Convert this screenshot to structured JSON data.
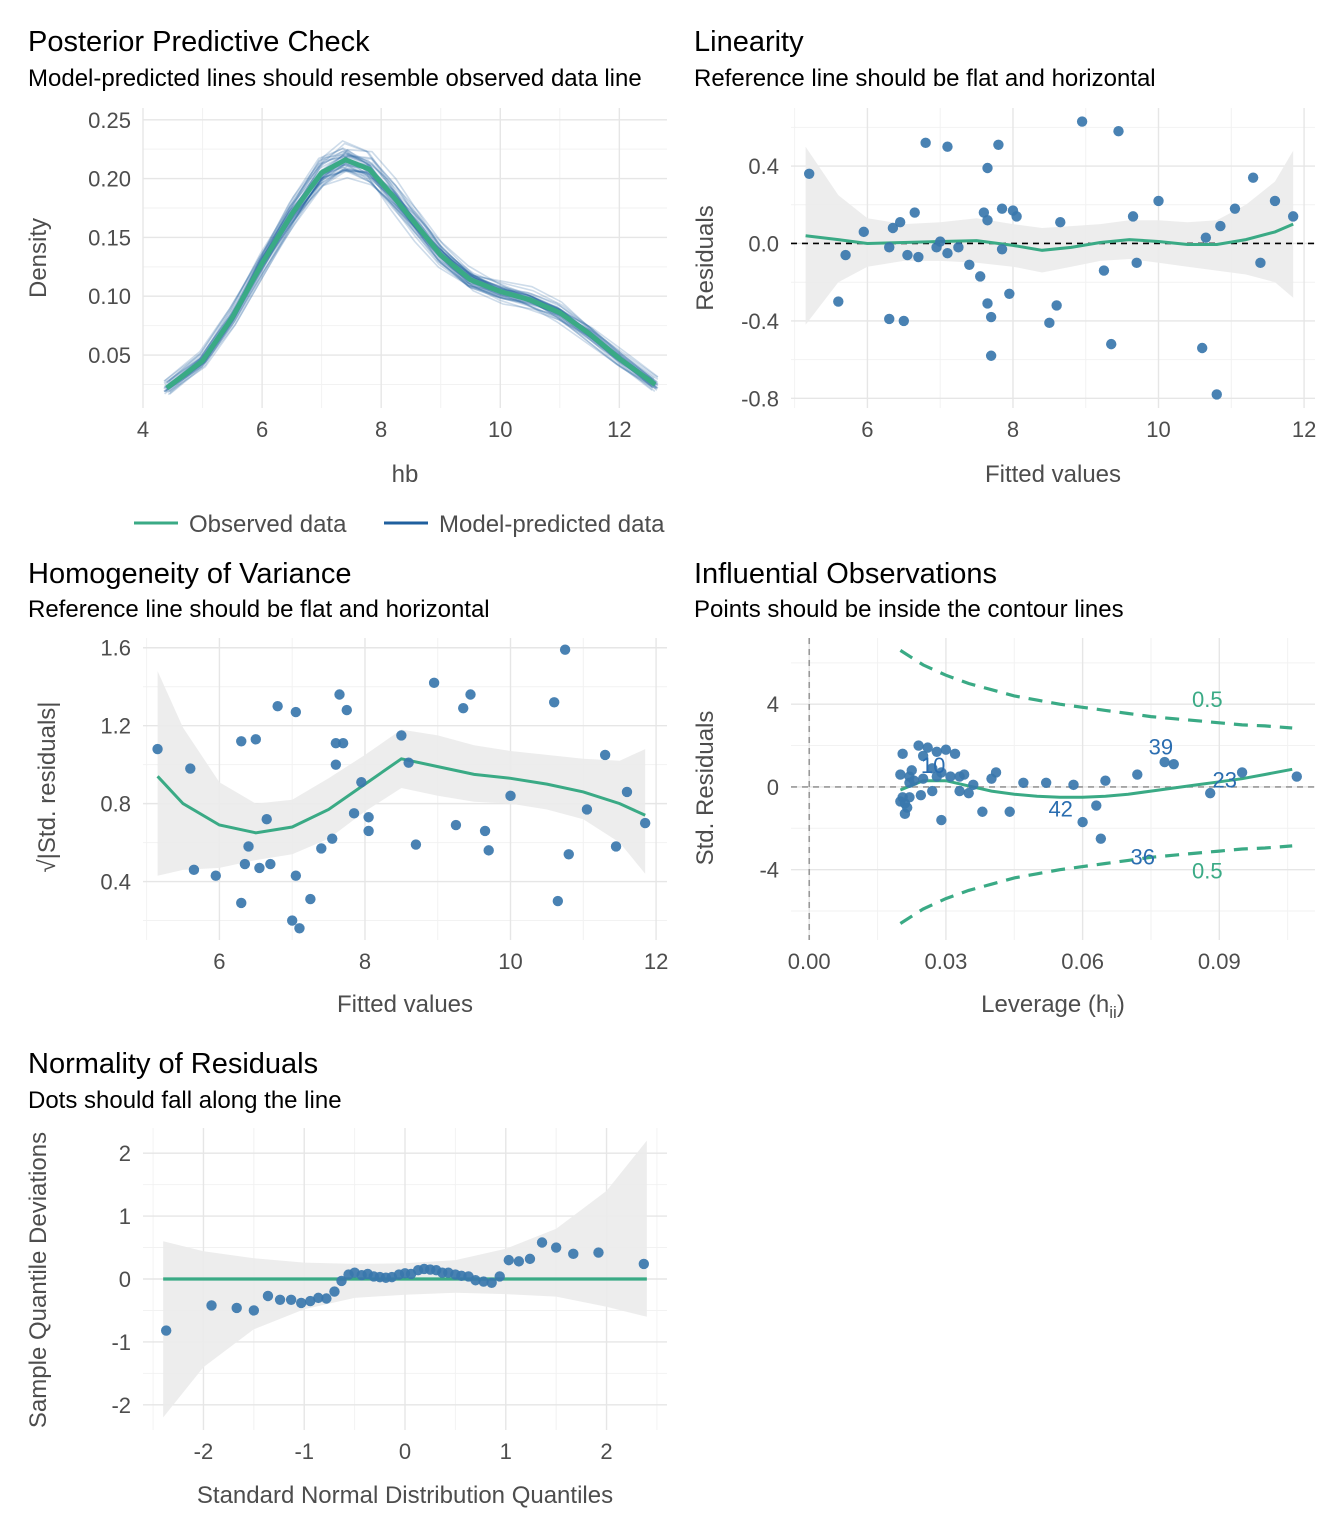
{
  "colors": {
    "observed": "#3aaa85",
    "predicted": "#1f5f9e",
    "points": "#3a77ac",
    "band": "#ebebeb",
    "grid": "#e6e6e6",
    "label_blue": "#2a6db0",
    "label_green": "#3aaa85"
  },
  "chart_data": [
    {
      "id": "ppc",
      "type": "line",
      "title": "Posterior Predictive Check",
      "subtitle": "Model-predicted lines should resemble observed data line",
      "xlabel": "hb",
      "ylabel": "Density",
      "xlim": [
        4,
        12.8
      ],
      "ylim": [
        0.005,
        0.26
      ],
      "xticks": [
        4,
        6,
        8,
        10,
        12
      ],
      "xtick_labels": [
        "4",
        "6",
        "8",
        "10",
        "12"
      ],
      "yticks": [
        0.05,
        0.1,
        0.15,
        0.2,
        0.25
      ],
      "ytick_labels": [
        "0.05",
        "0.10",
        "0.15",
        "0.20",
        "0.25"
      ],
      "legend": [
        "Observed data",
        "Model-predicted data"
      ],
      "legend_position": "bottom",
      "series": [
        {
          "name": "Observed data",
          "x": [
            4.4,
            5.0,
            5.5,
            6.0,
            6.5,
            7.0,
            7.4,
            7.8,
            8.2,
            8.6,
            9.0,
            9.5,
            10.0,
            10.5,
            11.0,
            11.5,
            12.0,
            12.6
          ],
          "y": [
            0.022,
            0.045,
            0.082,
            0.128,
            0.17,
            0.205,
            0.216,
            0.208,
            0.185,
            0.16,
            0.135,
            0.114,
            0.104,
            0.097,
            0.086,
            0.068,
            0.047,
            0.025
          ]
        }
      ]
    },
    {
      "id": "linearity",
      "type": "scatter",
      "title": "Linearity",
      "subtitle": "Reference line should be flat and horizontal",
      "xlabel": "Fitted values",
      "ylabel": "Residuals",
      "xlim": [
        4.95,
        12.15
      ],
      "ylim": [
        -0.85,
        0.7
      ],
      "xticks": [
        6,
        8,
        10,
        12
      ],
      "xtick_labels": [
        "6",
        "8",
        "10",
        "12"
      ],
      "yticks": [
        -0.8,
        -0.4,
        0.0,
        0.4
      ],
      "ytick_labels": [
        "-0.8",
        "-0.4",
        "0.0",
        "0.4"
      ],
      "points": [
        [
          5.2,
          0.36
        ],
        [
          5.6,
          -0.3
        ],
        [
          5.7,
          -0.06
        ],
        [
          5.95,
          0.06
        ],
        [
          6.3,
          -0.02
        ],
        [
          6.35,
          0.08
        ],
        [
          6.45,
          0.11
        ],
        [
          6.3,
          -0.39
        ],
        [
          6.5,
          -0.4
        ],
        [
          6.55,
          -0.06
        ],
        [
          6.65,
          0.16
        ],
        [
          6.7,
          -0.07
        ],
        [
          6.8,
          0.52
        ],
        [
          6.95,
          -0.02
        ],
        [
          7.0,
          0.01
        ],
        [
          7.1,
          0.5
        ],
        [
          7.1,
          -0.05
        ],
        [
          7.25,
          -0.02
        ],
        [
          7.4,
          -0.11
        ],
        [
          7.55,
          -0.17
        ],
        [
          7.6,
          0.16
        ],
        [
          7.65,
          0.39
        ],
        [
          7.65,
          0.12
        ],
        [
          7.7,
          -0.38
        ],
        [
          7.65,
          -0.31
        ],
        [
          7.7,
          -0.58
        ],
        [
          7.8,
          0.51
        ],
        [
          7.85,
          0.18
        ],
        [
          7.85,
          -0.03
        ],
        [
          8.0,
          0.17
        ],
        [
          7.95,
          -0.26
        ],
        [
          8.05,
          0.14
        ],
        [
          8.5,
          -0.41
        ],
        [
          8.6,
          -0.32
        ],
        [
          8.65,
          0.11
        ],
        [
          8.95,
          0.63
        ],
        [
          9.25,
          -0.14
        ],
        [
          9.35,
          -0.52
        ],
        [
          9.45,
          0.58
        ],
        [
          9.65,
          0.14
        ],
        [
          9.7,
          -0.1
        ],
        [
          10.0,
          0.22
        ],
        [
          10.65,
          0.03
        ],
        [
          10.6,
          -0.54
        ],
        [
          10.8,
          -0.78
        ],
        [
          10.85,
          0.09
        ],
        [
          11.05,
          0.18
        ],
        [
          11.3,
          0.34
        ],
        [
          11.4,
          -0.1
        ],
        [
          11.6,
          0.22
        ],
        [
          11.85,
          0.14
        ]
      ],
      "smooth": {
        "x": [
          5.15,
          5.6,
          6.0,
          6.5,
          7.0,
          7.5,
          8.0,
          8.4,
          8.8,
          9.2,
          9.6,
          10.0,
          10.4,
          10.8,
          11.2,
          11.6,
          11.85
        ],
        "y": [
          0.04,
          0.02,
          0.0,
          0.005,
          0.01,
          0.015,
          -0.01,
          -0.035,
          -0.02,
          0.005,
          0.02,
          0.01,
          -0.005,
          -0.005,
          0.02,
          0.06,
          0.1
        ],
        "lower": [
          -0.42,
          -0.2,
          -0.12,
          -0.09,
          -0.09,
          -0.1,
          -0.12,
          -0.15,
          -0.12,
          -0.09,
          -0.08,
          -0.1,
          -0.12,
          -0.14,
          -0.16,
          -0.2,
          -0.28
        ],
        "upper": [
          0.5,
          0.25,
          0.13,
          0.1,
          0.11,
          0.13,
          0.1,
          0.08,
          0.09,
          0.1,
          0.12,
          0.12,
          0.11,
          0.12,
          0.2,
          0.32,
          0.48
        ]
      },
      "ref_line": 0
    },
    {
      "id": "homogeneity",
      "type": "scatter",
      "title": "Homogeneity of Variance",
      "subtitle": "Reference line should be flat and horizontal",
      "xlabel": "Fitted values",
      "ylabel": "|Std. residuals|",
      "ylabel_prefix": "√",
      "xlim": [
        4.95,
        12.15
      ],
      "ylim": [
        0.1,
        1.65
      ],
      "xticks": [
        6,
        8,
        10,
        12
      ],
      "xtick_labels": [
        "6",
        "8",
        "10",
        "12"
      ],
      "yticks": [
        0.4,
        0.8,
        1.2,
        1.6
      ],
      "ytick_labels": [
        "0.4",
        "0.8",
        "1.2",
        "1.6"
      ],
      "points": [
        [
          5.15,
          1.08
        ],
        [
          5.6,
          0.98
        ],
        [
          5.65,
          0.46
        ],
        [
          5.95,
          0.43
        ],
        [
          6.3,
          1.12
        ],
        [
          6.35,
          0.49
        ],
        [
          6.3,
          0.29
        ],
        [
          6.4,
          0.58
        ],
        [
          6.5,
          1.13
        ],
        [
          6.55,
          0.47
        ],
        [
          6.65,
          0.72
        ],
        [
          6.7,
          0.49
        ],
        [
          6.8,
          1.3
        ],
        [
          7.0,
          0.2
        ],
        [
          7.05,
          0.43
        ],
        [
          7.1,
          0.16
        ],
        [
          7.05,
          1.27
        ],
        [
          7.25,
          0.31
        ],
        [
          7.4,
          0.57
        ],
        [
          7.55,
          0.62
        ],
        [
          7.6,
          1.0
        ],
        [
          7.6,
          1.11
        ],
        [
          7.65,
          1.36
        ],
        [
          7.7,
          1.11
        ],
        [
          7.75,
          1.28
        ],
        [
          7.85,
          0.75
        ],
        [
          7.95,
          0.91
        ],
        [
          8.05,
          0.73
        ],
        [
          8.05,
          0.66
        ],
        [
          8.5,
          1.15
        ],
        [
          8.6,
          1.01
        ],
        [
          8.7,
          0.59
        ],
        [
          8.95,
          1.42
        ],
        [
          9.25,
          0.69
        ],
        [
          9.35,
          1.29
        ],
        [
          9.45,
          1.36
        ],
        [
          9.65,
          0.66
        ],
        [
          9.7,
          0.56
        ],
        [
          10.0,
          0.84
        ],
        [
          10.6,
          1.32
        ],
        [
          10.65,
          0.3
        ],
        [
          10.75,
          1.59
        ],
        [
          10.8,
          0.54
        ],
        [
          11.05,
          0.77
        ],
        [
          11.3,
          1.05
        ],
        [
          11.45,
          0.58
        ],
        [
          11.6,
          0.86
        ],
        [
          11.85,
          0.7
        ]
      ],
      "smooth": {
        "x": [
          5.15,
          5.5,
          6.0,
          6.5,
          7.0,
          7.5,
          8.0,
          8.5,
          9.0,
          9.5,
          10.0,
          10.5,
          11.0,
          11.5,
          11.85
        ],
        "y": [
          0.94,
          0.8,
          0.69,
          0.65,
          0.68,
          0.77,
          0.9,
          1.03,
          0.99,
          0.95,
          0.93,
          0.9,
          0.86,
          0.8,
          0.74
        ],
        "lower": [
          0.43,
          0.46,
          0.47,
          0.51,
          0.54,
          0.62,
          0.76,
          0.88,
          0.84,
          0.81,
          0.8,
          0.77,
          0.72,
          0.6,
          0.44
        ],
        "upper": [
          1.48,
          1.19,
          0.91,
          0.8,
          0.82,
          0.93,
          1.05,
          1.18,
          1.15,
          1.1,
          1.07,
          1.05,
          1.03,
          1.02,
          1.08
        ]
      }
    },
    {
      "id": "influential",
      "type": "scatter",
      "title": "Influential Observations",
      "subtitle": "Points should be inside the contour lines",
      "xlabel": "Leverage (h",
      "xlabel_sub": "ii",
      "xlabel_end": ")",
      "ylabel": "Std. Residuals",
      "xlim": [
        -0.004,
        0.111
      ],
      "ylim": [
        -7.4,
        7.2
      ],
      "xticks": [
        0.0,
        0.03,
        0.06,
        0.09
      ],
      "xtick_labels": [
        "0.00",
        "0.03",
        "0.06",
        "0.09"
      ],
      "yticks": [
        -4,
        0,
        4
      ],
      "ytick_labels": [
        "-4",
        "0",
        "4"
      ],
      "points": [
        [
          0.02,
          0.6
        ],
        [
          0.0205,
          1.6
        ],
        [
          0.021,
          -0.8
        ],
        [
          0.0215,
          -1.0
        ],
        [
          0.021,
          -1.3
        ],
        [
          0.022,
          0.5
        ],
        [
          0.022,
          -0.5
        ],
        [
          0.0225,
          0.8
        ],
        [
          0.023,
          0.3
        ],
        [
          0.024,
          2.0
        ],
        [
          0.0245,
          -0.4
        ],
        [
          0.025,
          1.5
        ],
        [
          0.026,
          1.9
        ],
        [
          0.027,
          -0.2
        ],
        [
          0.028,
          0.5
        ],
        [
          0.028,
          1.7
        ],
        [
          0.029,
          -1.6
        ],
        [
          0.03,
          1.8
        ],
        [
          0.031,
          0.5
        ],
        [
          0.032,
          1.6
        ],
        [
          0.033,
          -0.2
        ],
        [
          0.034,
          0.6
        ],
        [
          0.035,
          -0.3
        ],
        [
          0.038,
          -1.2
        ],
        [
          0.04,
          0.4
        ],
        [
          0.041,
          0.7
        ],
        [
          0.044,
          -1.2
        ],
        [
          0.047,
          0.2
        ],
        [
          0.052,
          0.2
        ],
        [
          0.058,
          0.1
        ],
        [
          0.063,
          -0.9
        ],
        [
          0.064,
          -2.5
        ],
        [
          0.065,
          0.3
        ],
        [
          0.072,
          0.6
        ],
        [
          0.078,
          1.2
        ],
        [
          0.08,
          1.1
        ],
        [
          0.088,
          -0.3
        ],
        [
          0.095,
          0.7
        ],
        [
          0.107,
          0.5
        ],
        [
          0.0205,
          -0.5
        ],
        [
          0.022,
          0.2
        ],
        [
          0.02,
          -0.7
        ],
        [
          0.025,
          0.4
        ],
        [
          0.027,
          0.9
        ],
        [
          0.029,
          0.7
        ],
        [
          0.033,
          0.5
        ],
        [
          0.036,
          0.1
        ],
        [
          0.06,
          -1.7
        ]
      ],
      "smooth": {
        "x": [
          0.02,
          0.025,
          0.03,
          0.035,
          0.04,
          0.045,
          0.05,
          0.055,
          0.06,
          0.065,
          0.07,
          0.075,
          0.08,
          0.085,
          0.09,
          0.095,
          0.1,
          0.106
        ],
        "y": [
          -0.15,
          0.3,
          0.3,
          0.05,
          -0.2,
          -0.35,
          -0.45,
          -0.5,
          -0.5,
          -0.45,
          -0.35,
          -0.2,
          -0.05,
          0.1,
          0.25,
          0.4,
          0.6,
          0.85
        ]
      },
      "contour_upper_x": [
        0.02,
        0.025,
        0.03,
        0.035,
        0.04,
        0.045,
        0.05,
        0.055,
        0.06,
        0.065,
        0.07,
        0.075,
        0.08,
        0.085,
        0.09,
        0.095,
        0.1,
        0.106
      ],
      "contour_upper_y": [
        6.6,
        5.9,
        5.4,
        5.0,
        4.7,
        4.4,
        4.2,
        4.0,
        3.85,
        3.7,
        3.55,
        3.4,
        3.3,
        3.2,
        3.1,
        3.0,
        2.95,
        2.85
      ],
      "contour_lower_y": [
        -6.6,
        -5.9,
        -5.4,
        -5.0,
        -4.7,
        -4.4,
        -4.2,
        -4.0,
        -3.85,
        -3.7,
        -3.55,
        -3.4,
        -3.3,
        -3.2,
        -3.1,
        -3.0,
        -2.95,
        -2.85
      ],
      "contour_labels": [
        {
          "text": "0.5",
          "x": 0.084,
          "y": 4.2
        },
        {
          "text": "0.5",
          "x": 0.084,
          "y": -4.1
        }
      ],
      "point_labels": [
        {
          "text": "10",
          "x": 0.0245,
          "y": 1.0
        },
        {
          "text": "39",
          "x": 0.0745,
          "y": 1.9
        },
        {
          "text": "23",
          "x": 0.0885,
          "y": 0.3
        },
        {
          "text": "42",
          "x": 0.0525,
          "y": -1.1
        },
        {
          "text": "36",
          "x": 0.0705,
          "y": -3.4
        }
      ]
    },
    {
      "id": "qq",
      "type": "scatter",
      "title": "Normality of Residuals",
      "subtitle": "Dots should fall along the line",
      "xlabel": "Standard Normal Distribution Quantiles",
      "ylabel": "Sample Quantile Deviations",
      "xlim": [
        -2.6,
        2.6
      ],
      "ylim": [
        -2.4,
        2.4
      ],
      "xticks": [
        -2,
        -1,
        0,
        1,
        2
      ],
      "xtick_labels": [
        "-2",
        "-1",
        "0",
        "1",
        "2"
      ],
      "yticks": [
        -2,
        -1,
        0,
        1,
        2
      ],
      "ytick_labels": [
        "-2",
        "-1",
        "0",
        "1",
        "2"
      ],
      "points": [
        [
          -2.37,
          -0.82
        ],
        [
          -1.92,
          -0.42
        ],
        [
          -1.67,
          -0.46
        ],
        [
          -1.5,
          -0.5
        ],
        [
          -1.36,
          -0.27
        ],
        [
          -1.24,
          -0.33
        ],
        [
          -1.13,
          -0.33
        ],
        [
          -1.03,
          -0.38
        ],
        [
          -0.94,
          -0.35
        ],
        [
          -0.86,
          -0.3
        ],
        [
          -0.78,
          -0.31
        ],
        [
          -0.7,
          -0.2
        ],
        [
          -0.63,
          -0.03
        ],
        [
          -0.56,
          0.07
        ],
        [
          -0.5,
          0.1
        ],
        [
          -0.43,
          0.06
        ],
        [
          -0.37,
          0.08
        ],
        [
          -0.31,
          0.04
        ],
        [
          -0.25,
          0.03
        ],
        [
          -0.19,
          0.02
        ],
        [
          -0.13,
          0.03
        ],
        [
          -0.06,
          0.07
        ],
        [
          0.0,
          0.09
        ],
        [
          0.06,
          0.08
        ],
        [
          0.13,
          0.14
        ],
        [
          0.19,
          0.16
        ],
        [
          0.25,
          0.15
        ],
        [
          0.31,
          0.14
        ],
        [
          0.37,
          0.1
        ],
        [
          0.43,
          0.1
        ],
        [
          0.5,
          0.07
        ],
        [
          0.56,
          0.05
        ],
        [
          0.63,
          0.04
        ],
        [
          0.7,
          -0.02
        ],
        [
          0.78,
          -0.04
        ],
        [
          0.86,
          -0.06
        ],
        [
          0.94,
          0.04
        ],
        [
          1.03,
          0.3
        ],
        [
          1.13,
          0.28
        ],
        [
          1.24,
          0.32
        ],
        [
          1.36,
          0.58
        ],
        [
          1.5,
          0.5
        ],
        [
          1.67,
          0.4
        ],
        [
          1.92,
          0.42
        ],
        [
          2.37,
          0.24
        ]
      ],
      "ref_line": 0,
      "band_x": [
        -2.4,
        -2.0,
        -1.5,
        -1.0,
        -0.5,
        0.0,
        0.5,
        1.0,
        1.5,
        2.0,
        2.4
      ],
      "band_upper": [
        0.6,
        0.44,
        0.33,
        0.26,
        0.24,
        0.25,
        0.3,
        0.48,
        0.8,
        1.4,
        2.2
      ],
      "band_lower": [
        -2.2,
        -1.4,
        -0.8,
        -0.48,
        -0.3,
        -0.25,
        -0.22,
        -0.24,
        -0.28,
        -0.44,
        -0.6
      ]
    }
  ]
}
